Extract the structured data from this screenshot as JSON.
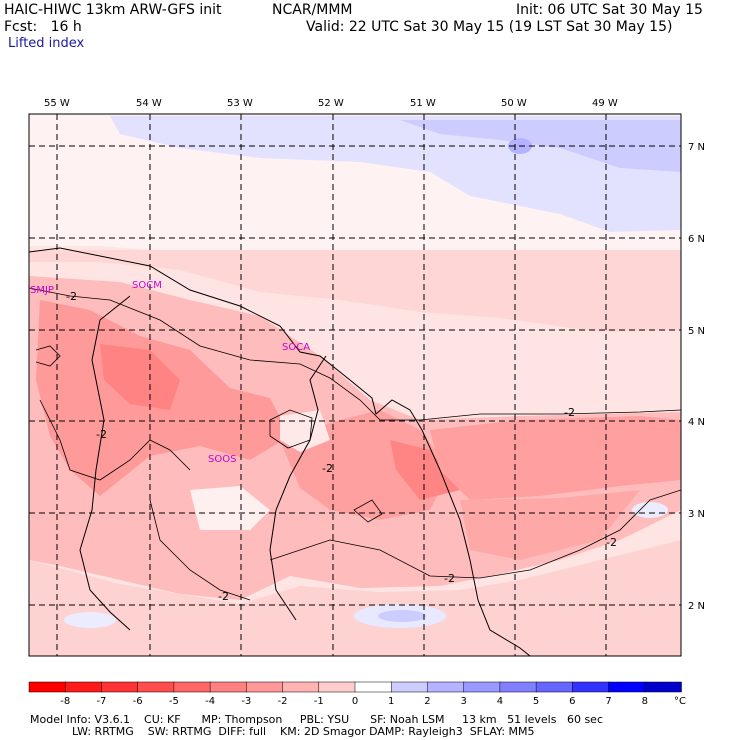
{
  "header": {
    "model": "HAIC-HIWC 13km ARW-GFS init",
    "org": "NCAR/MMM",
    "init": "Init: 06 UTC Sat 30 May 15",
    "fcst": "Fcst:   16 h",
    "valid": "Valid: 22 UTC Sat 30 May 15 (19 LST Sat 30 May 15)",
    "field": "Lifted index"
  },
  "map": {
    "lon_labels": [
      "55 W",
      "54 W",
      "53 W",
      "52 W",
      "51 W",
      "50 W",
      "49 W"
    ],
    "lat_labels": [
      "7 N",
      "6 N",
      "5 N",
      "4 N",
      "3 N",
      "2 N"
    ],
    "stations": [
      "SMJP",
      "SOCM",
      "SOCA",
      "SOOS"
    ],
    "contour_label": "-2"
  },
  "colorbar": {
    "ticks": [
      "-8",
      "-7",
      "-6",
      "-5",
      "-4",
      "-3",
      "-2",
      "-1",
      "0",
      "1",
      "2",
      "3",
      "4",
      "5",
      "6",
      "7",
      "8"
    ],
    "unit": "°C",
    "colors": [
      "#ff0000",
      "#ff1a1a",
      "#ff3333",
      "#ff4d4d",
      "#ff6666",
      "#ff8080",
      "#ff9999",
      "#ffb3b3",
      "#ffcccc",
      "#ffffff",
      "#ccccff",
      "#b3b3ff",
      "#9999ff",
      "#8080ff",
      "#6666ff",
      "#3333ff",
      "#0000ff",
      "#0000cc"
    ]
  },
  "footer": {
    "line1": "Model Info: V3.6.1    CU: KF      MP: Thompson     PBL: YSU      SF: Noah LSM     13 km   51 levels   60 sec",
    "line2": "LW: RRTMG    SW: RRTMG  DIFF: full    KM: 2D Smagor DAMP: Rayleigh3  SFLAY: MM5"
  }
}
